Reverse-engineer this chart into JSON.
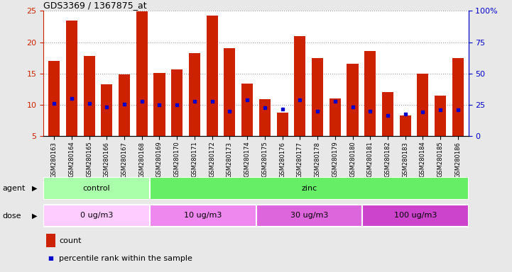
{
  "title": "GDS3369 / 1367875_at",
  "samples": [
    "GSM280163",
    "GSM280164",
    "GSM280165",
    "GSM280166",
    "GSM280167",
    "GSM280168",
    "GSM280169",
    "GSM280170",
    "GSM280171",
    "GSM280172",
    "GSM280173",
    "GSM280174",
    "GSM280175",
    "GSM280176",
    "GSM280177",
    "GSM280178",
    "GSM280179",
    "GSM280180",
    "GSM280181",
    "GSM280182",
    "GSM280183",
    "GSM280184",
    "GSM280185",
    "GSM280186"
  ],
  "counts": [
    17.0,
    23.5,
    17.8,
    13.3,
    14.9,
    24.9,
    15.1,
    15.6,
    18.2,
    24.2,
    19.0,
    13.4,
    10.9,
    8.7,
    21.0,
    17.5,
    11.0,
    16.6,
    18.6,
    12.0,
    8.3,
    15.0,
    11.5,
    17.4
  ],
  "percentile_ranks": [
    10.2,
    11.0,
    10.2,
    9.6,
    10.1,
    10.5,
    10.0,
    10.0,
    10.6,
    10.6,
    9.0,
    10.8,
    9.5,
    9.3,
    10.8,
    9.0,
    10.5,
    9.6,
    9.0,
    8.3,
    8.5,
    8.8,
    9.2,
    9.2
  ],
  "bar_color": "#cc2200",
  "dot_color": "#0000cc",
  "ymin": 5,
  "ymax": 25,
  "yticks_left": [
    5,
    10,
    15,
    20,
    25
  ],
  "yticks_right": [
    0,
    25,
    50,
    75,
    100
  ],
  "ylabel_left_color": "#cc2200",
  "ylabel_right_color": "#0000cc",
  "agent_labels": [
    {
      "text": "control",
      "start": 0,
      "end": 6,
      "color": "#aaffaa"
    },
    {
      "text": "zinc",
      "start": 6,
      "end": 24,
      "color": "#66ee66"
    }
  ],
  "dose_colors": [
    "#ffccff",
    "#ee88ee",
    "#dd66dd",
    "#cc44cc"
  ],
  "dose_labels": [
    {
      "text": "0 ug/m3",
      "start": 0,
      "end": 6
    },
    {
      "text": "10 ug/m3",
      "start": 6,
      "end": 12
    },
    {
      "text": "30 ug/m3",
      "start": 12,
      "end": 18
    },
    {
      "text": "100 ug/m3",
      "start": 18,
      "end": 24
    }
  ],
  "legend_count_color": "#cc2200",
  "legend_dot_color": "#0000cc",
  "bg_color": "#e8e8e8",
  "plot_bg_color": "#ffffff"
}
